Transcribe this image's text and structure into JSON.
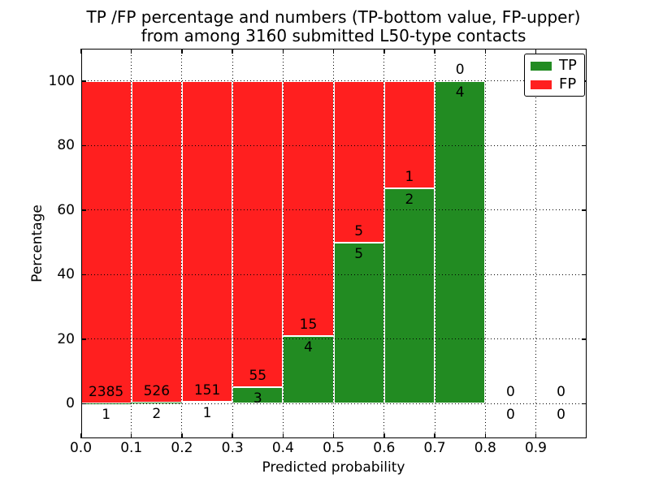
{
  "chart_data": {
    "type": "bar",
    "stacked": true,
    "title_lines": [
      "TP /FP percentage and numbers (TP-bottom value, FP-upper)",
      "from among 3160 submitted L50-type contacts"
    ],
    "xlabel": "Predicted probability",
    "ylabel": "Percentage",
    "xlim": [
      0.0,
      1.0
    ],
    "ylim": [
      -10.7,
      110.0
    ],
    "xticks": [
      0.0,
      0.1,
      0.2,
      0.3,
      0.4,
      0.5,
      0.6,
      0.7,
      0.8,
      0.9
    ],
    "yticks": [
      0,
      20,
      40,
      60,
      80,
      100
    ],
    "grid": {
      "linestyle": "dotted",
      "color": "#000000",
      "drawn_over_bars": true
    },
    "bin_edges": [
      0.0,
      0.1,
      0.2,
      0.3,
      0.4,
      0.5,
      0.6,
      0.7,
      0.8,
      0.9,
      1.0
    ],
    "values_are": "percent share of each bin total (TP bottom, FP on top)",
    "series": [
      {
        "name": "TP",
        "color": "#228b22",
        "counts": [
          1,
          2,
          1,
          3,
          4,
          5,
          2,
          4,
          0,
          0
        ]
      },
      {
        "name": "FP",
        "color": "#ff1f1f",
        "counts": [
          2385,
          526,
          151,
          55,
          15,
          5,
          1,
          0,
          0,
          0
        ]
      }
    ],
    "bar_edge_color": "#ffffff",
    "legend": {
      "loc": "upper right",
      "labels": [
        "TP",
        "FP"
      ]
    }
  }
}
